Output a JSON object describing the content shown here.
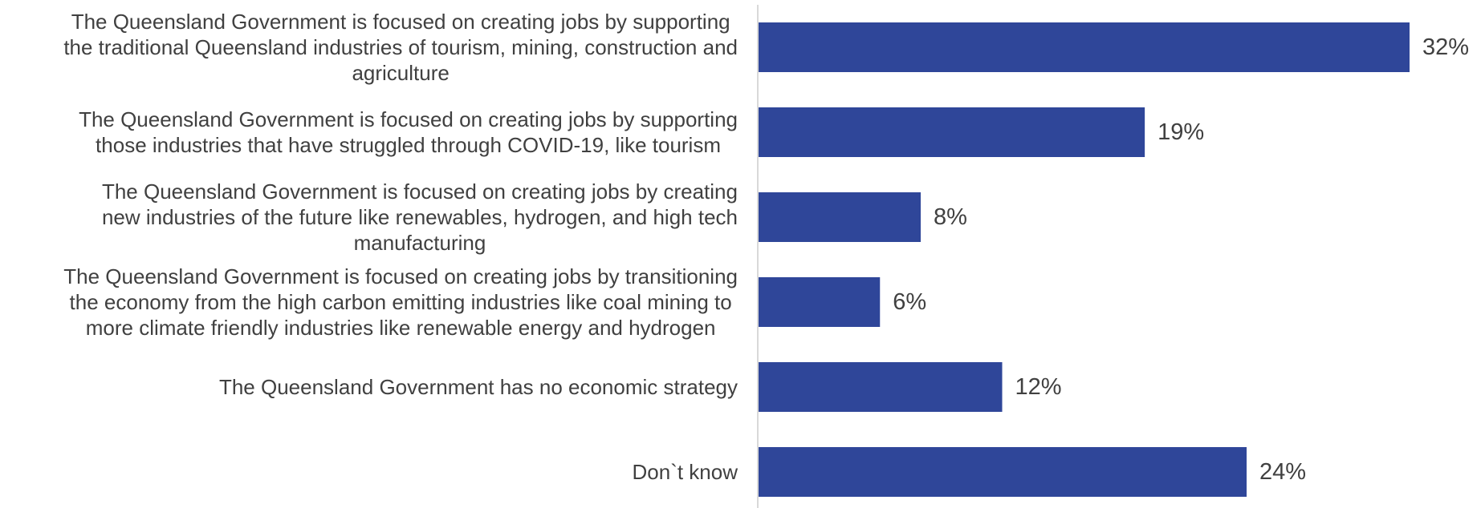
{
  "chart_data": {
    "type": "bar",
    "orientation": "horizontal",
    "categories": [
      [
        "The Queensland Government is focused on creating jobs by supporting",
        "the traditional Queensland industries of tourism, mining, construction and",
        "agriculture"
      ],
      [
        "The Queensland Government is focused on creating jobs by supporting",
        "those industries that have struggled through COVID-19, like tourism"
      ],
      [
        "The Queensland Government is focused on creating jobs by creating",
        "new industries of the future like renewables, hydrogen, and high tech",
        "manufacturing"
      ],
      [
        "The Queensland Government is focused on creating jobs by transitioning",
        "the economy from the high carbon emitting industries like coal mining to",
        "more climate friendly industries like renewable energy and hydrogen"
      ],
      [
        "The Queensland Government has no economic strategy"
      ],
      [
        "Don`t know"
      ]
    ],
    "values": [
      32,
      19,
      8,
      6,
      12,
      24
    ],
    "value_labels": [
      "32%",
      "19%",
      "8%",
      "6%",
      "12%",
      "24%"
    ],
    "title": "",
    "xlabel": "",
    "ylabel": "",
    "xlim": [
      0,
      32
    ],
    "grid": false,
    "legend": "none",
    "bar_color": "#2F4699",
    "axis_color": "#D9D9D9",
    "text_color": "#404040"
  }
}
